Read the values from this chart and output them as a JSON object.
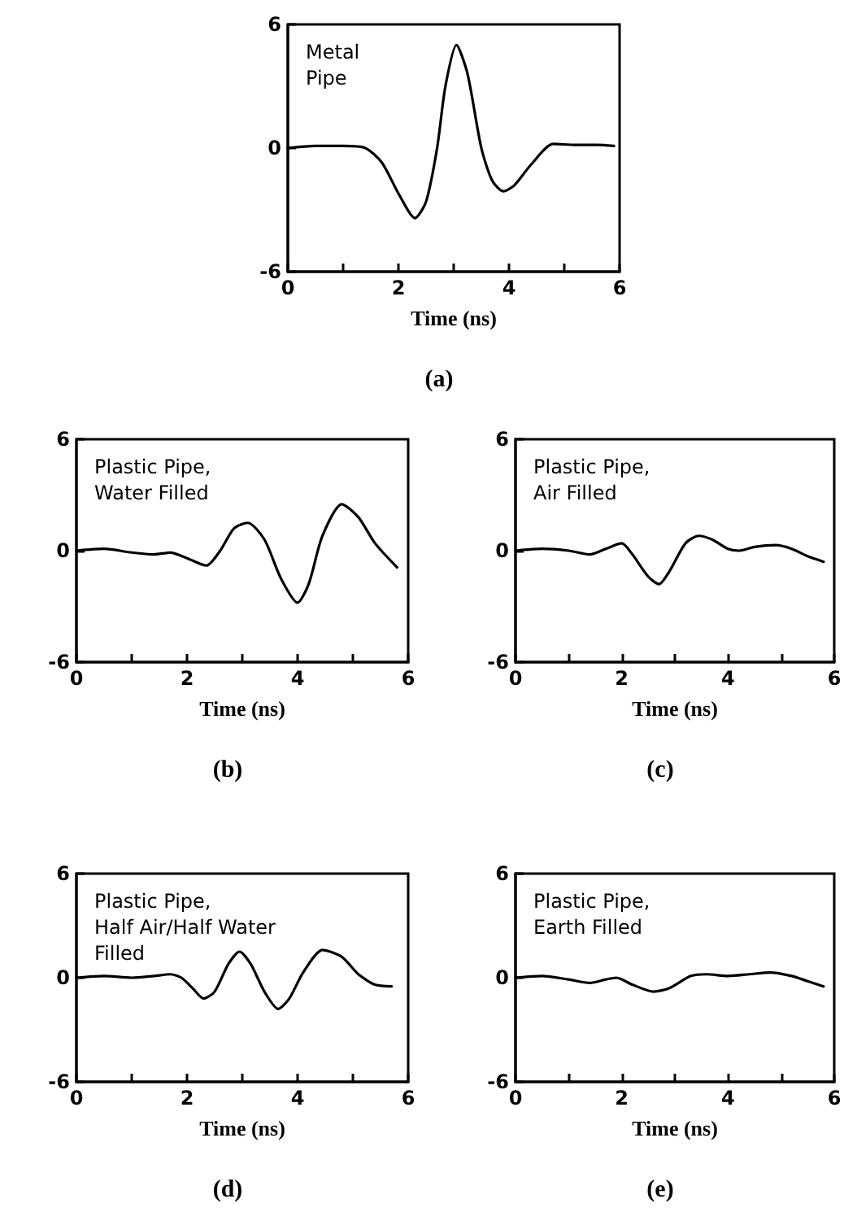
{
  "chart_data": [
    {
      "type": "line",
      "title": "Metal\nPipe",
      "xlabel": "Time (ns)",
      "annotations": [
        "(a)"
      ],
      "xlim": [
        0,
        6
      ],
      "ylim": [
        -6,
        6
      ],
      "xticks": [
        0,
        {
          "value": 1,
          "label": null
        },
        2,
        {
          "value": 3,
          "label": null
        },
        4,
        {
          "value": 5,
          "label": null
        },
        6
      ],
      "yticks": [
        -6,
        0,
        6
      ],
      "marker": "none",
      "line_style": "solid",
      "series": [
        {
          "color": "#000000",
          "x": [
            0,
            0.5,
            1.0,
            1.4,
            1.7,
            2.0,
            2.3,
            2.5,
            2.7,
            2.85,
            3.05,
            3.25,
            3.5,
            3.7,
            3.9,
            4.1,
            4.4,
            4.8,
            5.2,
            5.6,
            5.9
          ],
          "values": [
            0,
            0.1,
            0.1,
            0,
            -0.7,
            -2.2,
            -3.4,
            -2.6,
            0,
            3,
            5.0,
            3.6,
            0,
            -1.6,
            -2.1,
            -1.8,
            -0.8,
            0.2,
            0.15,
            0.15,
            0.1
          ]
        }
      ]
    },
    {
      "type": "line",
      "title": "Plastic Pipe,\nWater Filled",
      "xlabel": "Time (ns)",
      "annotations": [
        "(b)"
      ],
      "xlim": [
        0,
        6
      ],
      "ylim": [
        -6,
        6
      ],
      "xticks": [
        0,
        {
          "value": 1,
          "label": null
        },
        2,
        {
          "value": 3,
          "label": null
        },
        4,
        {
          "value": 5,
          "label": null
        },
        6
      ],
      "yticks": [
        -6,
        0,
        6
      ],
      "marker": "none",
      "line_style": "solid",
      "series": [
        {
          "color": "#000000",
          "x": [
            0,
            0.5,
            1,
            1.4,
            1.7,
            2.0,
            2.35,
            2.6,
            2.85,
            3.1,
            3.4,
            3.7,
            4.0,
            4.2,
            4.45,
            4.8,
            5.1,
            5.4,
            5.8
          ],
          "values": [
            0,
            0.1,
            -0.1,
            -0.2,
            -0.1,
            -0.4,
            -0.8,
            0,
            1.2,
            1.5,
            0.6,
            -1.5,
            -2.8,
            -1.8,
            0.8,
            2.5,
            1.8,
            0.4,
            -0.9
          ]
        }
      ]
    },
    {
      "type": "line",
      "title": "Plastic Pipe,\nAir Filled",
      "xlabel": "Time (ns)",
      "annotations": [
        "(c)"
      ],
      "xlim": [
        0,
        6
      ],
      "ylim": [
        -6,
        6
      ],
      "xticks": [
        0,
        {
          "value": 1,
          "label": null
        },
        2,
        {
          "value": 3,
          "label": null
        },
        4,
        {
          "value": 5,
          "label": null
        },
        6
      ],
      "yticks": [
        -6,
        0,
        6
      ],
      "marker": "none",
      "line_style": "solid",
      "series": [
        {
          "color": "#000000",
          "x": [
            0,
            0.5,
            1,
            1.4,
            1.7,
            2.0,
            2.2,
            2.5,
            2.7,
            2.9,
            3.2,
            3.45,
            3.7,
            4.0,
            4.2,
            4.5,
            4.9,
            5.2,
            5.5,
            5.8
          ],
          "values": [
            0,
            0.1,
            0,
            -0.2,
            0.1,
            0.4,
            -0.2,
            -1.4,
            -1.8,
            -1.1,
            0.4,
            0.8,
            0.6,
            0.1,
            0,
            0.2,
            0.3,
            0.1,
            -0.3,
            -0.6
          ]
        }
      ]
    },
    {
      "type": "line",
      "title": "Plastic Pipe,\nHalf Air/Half Water\nFilled",
      "xlabel": "Time (ns)",
      "annotations": [
        "(d)"
      ],
      "xlim": [
        0,
        6
      ],
      "ylim": [
        -6,
        6
      ],
      "xticks": [
        0,
        {
          "value": 1,
          "label": null
        },
        2,
        {
          "value": 3,
          "label": null
        },
        4,
        {
          "value": 5,
          "label": null
        },
        6
      ],
      "yticks": [
        -6,
        0,
        6
      ],
      "marker": "none",
      "line_style": "solid",
      "series": [
        {
          "color": "#000000",
          "x": [
            0,
            0.5,
            1.0,
            1.4,
            1.7,
            1.9,
            2.1,
            2.3,
            2.5,
            2.75,
            2.95,
            3.15,
            3.4,
            3.65,
            3.85,
            4.1,
            4.45,
            4.8,
            5.1,
            5.4,
            5.7
          ],
          "values": [
            0,
            0.1,
            0,
            0.1,
            0.2,
            0,
            -0.6,
            -1.2,
            -0.8,
            0.8,
            1.5,
            0.8,
            -0.8,
            -1.8,
            -1.2,
            0.3,
            1.6,
            1.2,
            0.2,
            -0.4,
            -0.5
          ]
        }
      ]
    },
    {
      "type": "line",
      "title": "Plastic Pipe,\nEarth Filled",
      "xlabel": "Time (ns)",
      "annotations": [
        "(e)"
      ],
      "xlim": [
        0,
        6
      ],
      "ylim": [
        -6,
        6
      ],
      "xticks": [
        0,
        {
          "value": 1,
          "label": null
        },
        2,
        {
          "value": 3,
          "label": null
        },
        4,
        {
          "value": 5,
          "label": null
        },
        6
      ],
      "yticks": [
        -6,
        0,
        6
      ],
      "marker": "none",
      "line_style": "solid",
      "series": [
        {
          "color": "#000000",
          "x": [
            0,
            0.5,
            1.0,
            1.4,
            1.7,
            1.9,
            2.2,
            2.6,
            2.9,
            3.3,
            3.6,
            4.0,
            4.4,
            4.8,
            5.2,
            5.5,
            5.8
          ],
          "values": [
            0,
            0.1,
            -0.1,
            -0.3,
            -0.1,
            0,
            -0.4,
            -0.8,
            -0.6,
            0.1,
            0.2,
            0.1,
            0.2,
            0.3,
            0.1,
            -0.2,
            -0.5
          ]
        }
      ]
    }
  ]
}
